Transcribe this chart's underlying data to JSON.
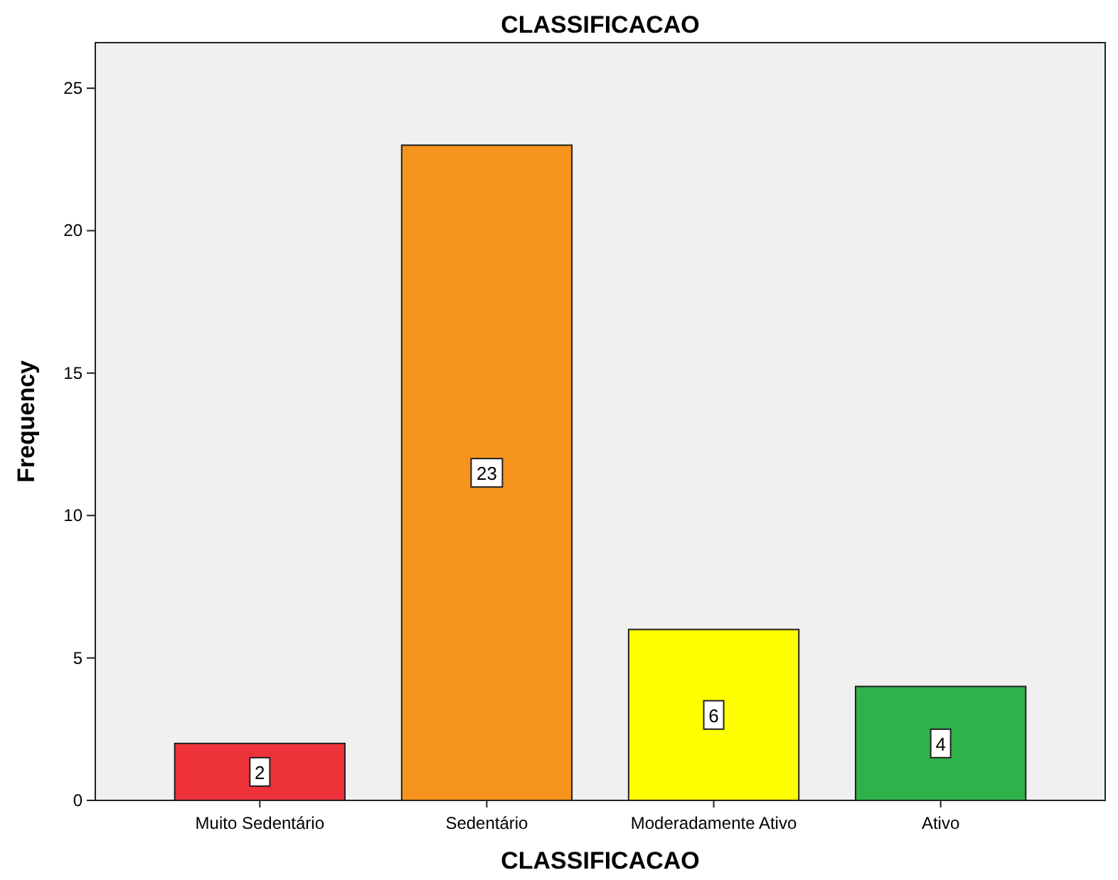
{
  "chart_data": {
    "type": "bar",
    "title": "CLASSIFICACAO",
    "xlabel": "CLASSIFICACAO",
    "ylabel": "Frequency",
    "categories": [
      "Muito Sedentário",
      "Sedentário",
      "Moderadamente Ativo",
      "Ativo"
    ],
    "values": [
      2,
      23,
      6,
      4
    ],
    "colors": [
      "#ee3239",
      "#f7941d",
      "#ffff00",
      "#2eb34a"
    ],
    "ylim": [
      0,
      26.6
    ],
    "yticks": [
      0,
      5,
      10,
      15,
      20,
      25
    ],
    "grid": false,
    "data_labels": true
  }
}
